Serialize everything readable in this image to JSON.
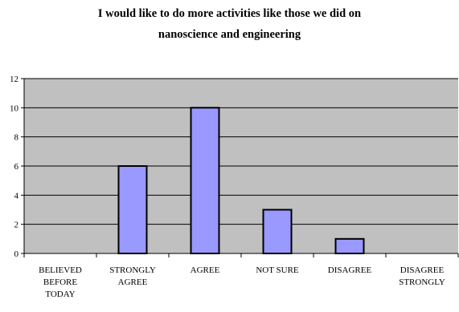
{
  "chart_data": {
    "type": "bar",
    "title_lines": [
      "I would like to do more activities like those we did on",
      "nanoscience and engineering"
    ],
    "categories": [
      [
        "BELIEVED",
        "BEFORE",
        "TODAY"
      ],
      [
        "STRONGLY",
        "AGREE"
      ],
      [
        "AGREE"
      ],
      [
        "NOT SURE"
      ],
      [
        "DISAGREE"
      ],
      [
        "DISAGREE",
        "STRONGLY"
      ]
    ],
    "values": [
      0,
      6,
      10,
      3,
      1,
      0
    ],
    "ylim": [
      0,
      12
    ],
    "yticks": [
      0,
      2,
      4,
      6,
      8,
      10,
      12
    ],
    "grid": true,
    "xlabel": "",
    "ylabel": "",
    "colors": {
      "plot_background": "#c0c0c0",
      "bar_fill": "#9999ff",
      "bar_stroke": "#000000",
      "grid": "#000000"
    }
  }
}
